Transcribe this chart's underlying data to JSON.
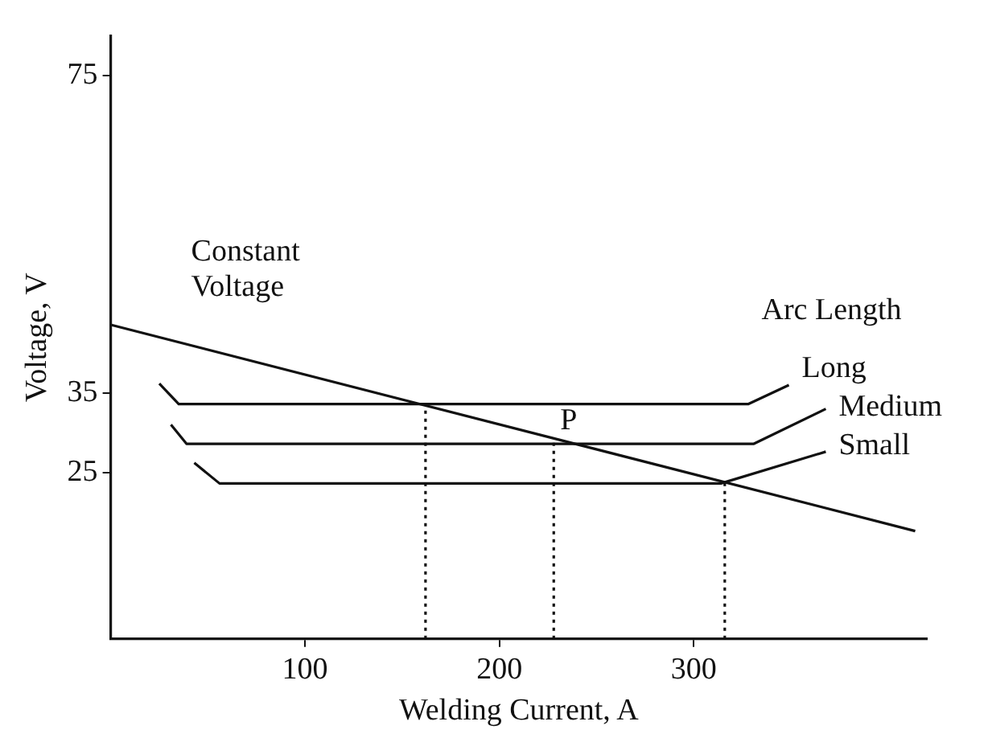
{
  "chart_data": {
    "type": "line",
    "xlabel": "Welding Current, A",
    "ylabel": "Voltage, V",
    "legend_title": "Arc Length",
    "xlim": [
      0,
      420
    ],
    "ylim": [
      4,
      80
    ],
    "xticks": [
      100,
      200,
      300
    ],
    "yticks": [
      25,
      35,
      75
    ],
    "grid": false,
    "legend": false,
    "marker": "none",
    "line_style": "solid",
    "annotations": [
      {
        "text": "P",
        "x": 228,
        "y": 28.6
      }
    ],
    "series": [
      {
        "name": "Constant Voltage",
        "color": "#111111",
        "x": [
          0,
          414
        ],
        "values": [
          43.6,
          17.6
        ]
      },
      {
        "name": "Long",
        "color": "#111111",
        "x": [
          25,
          35,
          328,
          349
        ],
        "values": [
          36.2,
          33.6,
          33.6,
          36
        ]
      },
      {
        "name": "Medium",
        "color": "#111111",
        "x": [
          31,
          39,
          331,
          368
        ],
        "values": [
          31,
          28.6,
          28.6,
          33
        ]
      },
      {
        "name": "Small",
        "color": "#111111",
        "x": [
          43,
          56,
          314,
          368
        ],
        "values": [
          26.2,
          23.6,
          23.6,
          27.6
        ]
      },
      {
        "color": "#111111",
        "line_style": "dotted",
        "x": [
          162,
          162
        ],
        "values": [
          4,
          33.4
        ]
      },
      {
        "color": "#111111",
        "line_style": "dotted",
        "x": [
          228,
          228
        ],
        "values": [
          4,
          29.3
        ]
      },
      {
        "color": "#111111",
        "line_style": "dotted",
        "x": [
          316,
          316
        ],
        "values": [
          4,
          23.8
        ]
      }
    ]
  }
}
